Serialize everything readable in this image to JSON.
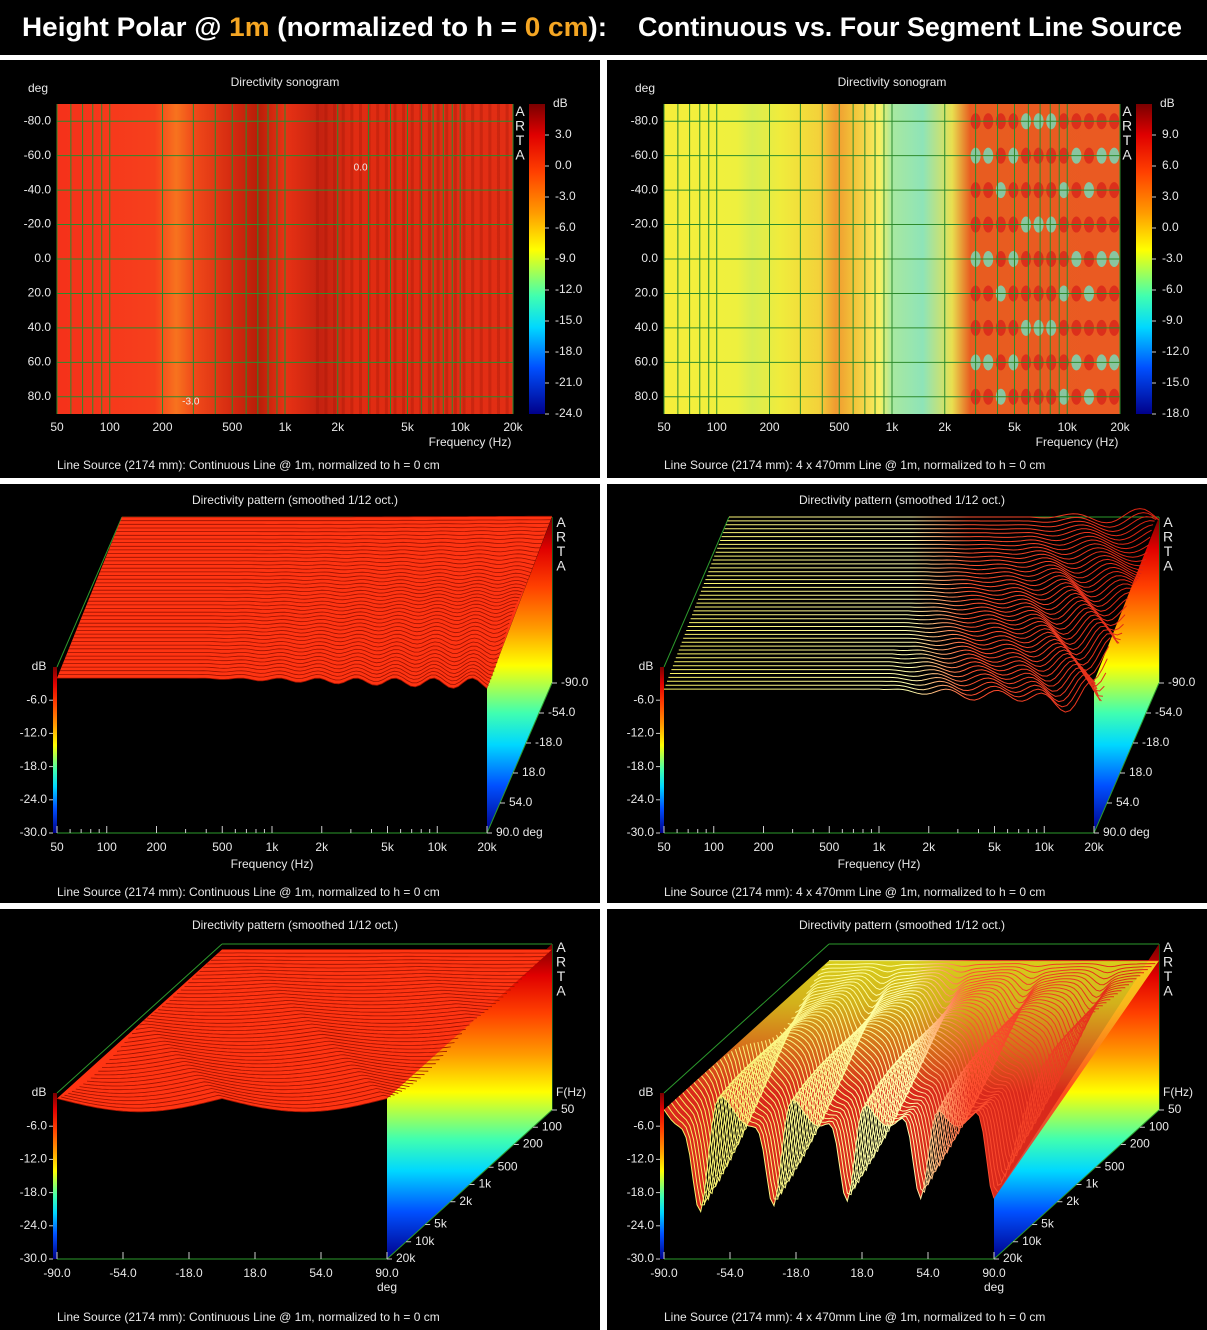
{
  "header": {
    "part1": "Height Polar @ ",
    "hl1": "1m",
    "part2": " (normalized to h = ",
    "hl2": "0 cm",
    "part3": "):",
    "right": "Continuous vs. Four Segment Line Source"
  },
  "chart_data": [
    {
      "type": "heatmap",
      "title": "Directivity sonogram",
      "logo": "ARTA",
      "xlabel": "Frequency (Hz)",
      "ylabel": "deg",
      "zlabel": "dB",
      "colormap": "jet",
      "xscale": "log",
      "xlim": [
        50,
        20000
      ],
      "xticks": [
        50,
        100,
        200,
        500,
        {
          "value": 1000,
          "label": "1k"
        },
        {
          "value": 2000,
          "label": "2k"
        },
        {
          "value": 5000,
          "label": "5k"
        },
        {
          "value": 10000,
          "label": "10k"
        },
        {
          "value": 20000,
          "label": "20k"
        }
      ],
      "xminorticks": [
        60,
        70,
        80,
        90,
        300,
        400,
        600,
        700,
        800,
        900,
        3000,
        4000,
        6000,
        7000,
        8000,
        9000
      ],
      "ylim": [
        -90,
        90
      ],
      "y_inverted": true,
      "yticks": [
        {
          "value": -80,
          "label": "-80.0"
        },
        {
          "value": -60,
          "label": "-60.0"
        },
        {
          "value": -40,
          "label": "-40.0"
        },
        {
          "value": -20,
          "label": "-20.0"
        },
        {
          "value": 0,
          "label": "0.0"
        },
        {
          "value": 20,
          "label": "20.0"
        },
        {
          "value": 40,
          "label": "40.0"
        },
        {
          "value": 60,
          "label": "60.0"
        },
        {
          "value": 80,
          "label": "80.0"
        }
      ],
      "zlim": [
        -24,
        6
      ],
      "zticks": [
        {
          "value": 3,
          "label": "3.0"
        },
        {
          "value": 0,
          "label": "0.0"
        },
        {
          "value": -3,
          "label": "-3.0"
        },
        {
          "value": -6,
          "label": "-6.0"
        },
        {
          "value": -9,
          "label": "-9.0"
        },
        {
          "value": -12,
          "label": "-12.0"
        },
        {
          "value": -15,
          "label": "-15.0"
        },
        {
          "value": -18,
          "label": "-18.0"
        },
        {
          "value": -21,
          "label": "-21.0"
        },
        {
          "value": -24,
          "label": "-24.0"
        }
      ],
      "annotations": [
        {
          "text": "0.0",
          "x": 2700,
          "y": -53
        },
        {
          "text": "-3.0",
          "x": 290,
          "y": 83
        }
      ],
      "caption": "Line Source (2174 mm): Continuous Line @ 1m, normalized to h = 0 cm"
    },
    {
      "type": "heatmap",
      "title": "Directivity sonogram",
      "logo": "ARTA",
      "xlabel": "Frequency (Hz)",
      "ylabel": "deg",
      "zlabel": "dB",
      "colormap": "jet",
      "xscale": "log",
      "xlim": [
        50,
        20000
      ],
      "xticks": [
        50,
        100,
        200,
        500,
        {
          "value": 1000,
          "label": "1k"
        },
        {
          "value": 2000,
          "label": "2k"
        },
        {
          "value": 5000,
          "label": "5k"
        },
        {
          "value": 10000,
          "label": "10k"
        },
        {
          "value": 20000,
          "label": "20k"
        }
      ],
      "xminorticks": [
        60,
        70,
        80,
        90,
        300,
        400,
        600,
        700,
        800,
        900,
        3000,
        4000,
        6000,
        7000,
        8000,
        9000
      ],
      "ylim": [
        -90,
        90
      ],
      "y_inverted": true,
      "yticks": [
        {
          "value": -80,
          "label": "-80.0"
        },
        {
          "value": -60,
          "label": "-60.0"
        },
        {
          "value": -40,
          "label": "-40.0"
        },
        {
          "value": -20,
          "label": "-20.0"
        },
        {
          "value": 0,
          "label": "0.0"
        },
        {
          "value": 20,
          "label": "20.0"
        },
        {
          "value": 40,
          "label": "40.0"
        },
        {
          "value": 60,
          "label": "60.0"
        },
        {
          "value": 80,
          "label": "80.0"
        }
      ],
      "zlim": [
        -18,
        12
      ],
      "zticks": [
        {
          "value": 9,
          "label": "9.0"
        },
        {
          "value": 6,
          "label": "6.0"
        },
        {
          "value": 3,
          "label": "3.0"
        },
        {
          "value": 0,
          "label": "0.0"
        },
        {
          "value": -3,
          "label": "-3.0"
        },
        {
          "value": -6,
          "label": "-6.0"
        },
        {
          "value": -9,
          "label": "-9.0"
        },
        {
          "value": -12,
          "label": "-12.0"
        },
        {
          "value": -15,
          "label": "-15.0"
        },
        {
          "value": -18,
          "label": "-18.0"
        }
      ],
      "caption": "Line Source (2174 mm): 4 x 470mm Line @ 1m, normalized to h = 0 cm"
    },
    {
      "type": "surface3d",
      "title": "Directivity pattern (smoothed 1/12 oct.)",
      "logo": "ARTA",
      "xlabel": "Frequency (Hz)",
      "zlabel": "dB",
      "colormap": "jet",
      "xscale": "log",
      "xlim": [
        50,
        20000
      ],
      "xticks": [
        50,
        100,
        200,
        500,
        {
          "value": 1000,
          "label": "1k"
        },
        {
          "value": 2000,
          "label": "2k"
        },
        {
          "value": 5000,
          "label": "5k"
        },
        {
          "value": 10000,
          "label": "10k"
        },
        {
          "value": 20000,
          "label": "20k"
        }
      ],
      "xminorticks": [
        60,
        70,
        80,
        90,
        300,
        400,
        600,
        700,
        800,
        900,
        3000,
        4000,
        6000,
        7000,
        8000,
        9000
      ],
      "ylim": [
        -90,
        90
      ],
      "yticks": [
        {
          "value": -90,
          "label": "-90.0"
        },
        {
          "value": -54,
          "label": "-54.0"
        },
        {
          "value": -18,
          "label": "-18.0"
        },
        {
          "value": 18,
          "label": "18.0"
        },
        {
          "value": 54,
          "label": "54.0"
        },
        {
          "value": 90,
          "label": "90.0 deg"
        }
      ],
      "zlim": [
        -30,
        0
      ],
      "zticks": [
        {
          "value": -6,
          "label": "-6.0"
        },
        {
          "value": -12,
          "label": "-12.0"
        },
        {
          "value": -18,
          "label": "-18.0"
        },
        {
          "value": -24,
          "label": "-24.0"
        },
        {
          "value": -30,
          "label": "-30.0"
        }
      ],
      "caption": "Line Source (2174 mm): Continuous Line @ 1m, normalized to h = 0 cm"
    },
    {
      "type": "surface3d",
      "title": "Directivity pattern (smoothed 1/12 oct.)",
      "logo": "ARTA",
      "xlabel": "Frequency (Hz)",
      "zlabel": "dB",
      "colormap": "jet",
      "xscale": "log",
      "xlim": [
        50,
        20000
      ],
      "xticks": [
        50,
        100,
        200,
        500,
        {
          "value": 1000,
          "label": "1k"
        },
        {
          "value": 2000,
          "label": "2k"
        },
        {
          "value": 5000,
          "label": "5k"
        },
        {
          "value": 10000,
          "label": "10k"
        },
        {
          "value": 20000,
          "label": "20k"
        }
      ],
      "xminorticks": [
        60,
        70,
        80,
        90,
        300,
        400,
        600,
        700,
        800,
        900,
        3000,
        4000,
        6000,
        7000,
        8000,
        9000
      ],
      "ylim": [
        -90,
        90
      ],
      "yticks": [
        {
          "value": -90,
          "label": "-90.0"
        },
        {
          "value": -54,
          "label": "-54.0"
        },
        {
          "value": -18,
          "label": "-18.0"
        },
        {
          "value": 18,
          "label": "18.0"
        },
        {
          "value": 54,
          "label": "54.0"
        },
        {
          "value": 90,
          "label": "90.0 deg"
        }
      ],
      "zlim": [
        -30,
        0
      ],
      "zticks": [
        {
          "value": -6,
          "label": "-6.0"
        },
        {
          "value": -12,
          "label": "-12.0"
        },
        {
          "value": -18,
          "label": "-18.0"
        },
        {
          "value": -24,
          "label": "-24.0"
        },
        {
          "value": -30,
          "label": "-30.0"
        }
      ],
      "caption": "Line Source (2174 mm): 4 x 470mm Line @ 1m, normalized to h = 0 cm"
    },
    {
      "type": "surface3d",
      "title": "Directivity pattern (smoothed 1/12 oct.)",
      "logo": "ARTA",
      "xlabel": "deg",
      "ylabel": "F(Hz)",
      "zlabel": "dB",
      "colormap": "jet",
      "yscale": "log",
      "xlim": [
        -90,
        90
      ],
      "xticks": [
        {
          "value": -90,
          "label": "-90.0"
        },
        {
          "value": -54,
          "label": "-54.0"
        },
        {
          "value": -18,
          "label": "-18.0"
        },
        {
          "value": 18,
          "label": "18.0"
        },
        {
          "value": 54,
          "label": "54.0"
        },
        {
          "value": 90,
          "label": "90.0"
        }
      ],
      "ylim": [
        50,
        20000
      ],
      "yticks": [
        50,
        100,
        200,
        500,
        {
          "value": 1000,
          "label": "1k"
        },
        {
          "value": 2000,
          "label": "2k"
        },
        {
          "value": 5000,
          "label": "5k"
        },
        {
          "value": 10000,
          "label": "10k"
        },
        {
          "value": 20000,
          "label": "20k"
        }
      ],
      "zlim": [
        -30,
        0
      ],
      "zticks": [
        {
          "value": -6,
          "label": "-6.0"
        },
        {
          "value": -12,
          "label": "-12.0"
        },
        {
          "value": -18,
          "label": "-18.0"
        },
        {
          "value": -24,
          "label": "-24.0"
        },
        {
          "value": -30,
          "label": "-30.0"
        }
      ],
      "caption": "Line Source (2174 mm): Continuous Line @ 1m, normalized to h = 0 cm"
    },
    {
      "type": "surface3d",
      "title": "Directivity pattern (smoothed 1/12 oct.)",
      "logo": "ARTA",
      "xlabel": "deg",
      "ylabel": "F(Hz)",
      "zlabel": "dB",
      "colormap": "jet",
      "yscale": "log",
      "xlim": [
        -90,
        90
      ],
      "xticks": [
        {
          "value": -90,
          "label": "-90.0"
        },
        {
          "value": -54,
          "label": "-54.0"
        },
        {
          "value": -18,
          "label": "-18.0"
        },
        {
          "value": 18,
          "label": "18.0"
        },
        {
          "value": 54,
          "label": "54.0"
        },
        {
          "value": 90,
          "label": "90.0"
        }
      ],
      "ylim": [
        50,
        20000
      ],
      "yticks": [
        50,
        100,
        200,
        500,
        {
          "value": 1000,
          "label": "1k"
        },
        {
          "value": 2000,
          "label": "2k"
        },
        {
          "value": 5000,
          "label": "5k"
        },
        {
          "value": 10000,
          "label": "10k"
        },
        {
          "value": 20000,
          "label": "20k"
        }
      ],
      "zlim": [
        -30,
        0
      ],
      "zticks": [
        {
          "value": -6,
          "label": "-6.0"
        },
        {
          "value": -12,
          "label": "-12.0"
        },
        {
          "value": -18,
          "label": "-18.0"
        },
        {
          "value": -24,
          "label": "-24.0"
        },
        {
          "value": -30,
          "label": "-30.0"
        }
      ],
      "caption": "Line Source (2174 mm): 4 x 470mm Line @ 1m, normalized to h = 0 cm"
    }
  ]
}
